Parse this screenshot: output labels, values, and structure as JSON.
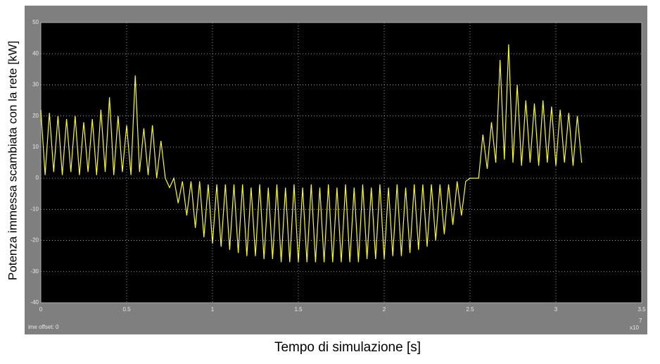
{
  "chart_data": {
    "type": "line",
    "y_label": "Potenza immessa scambiata con la rete  [kW]",
    "x_label": "Tempo di simulazione [s]",
    "offset_text": "ime offset:  0",
    "x_multiplier": {
      "base": "x10",
      "exponent": "7"
    },
    "color": "#ffff00",
    "grid": true,
    "xlim": [
      0,
      3.5
    ],
    "ylim": [
      -40,
      50
    ],
    "xticks": [
      0,
      0.5,
      1,
      1.5,
      2,
      2.5,
      3,
      3.5
    ],
    "yticks": [
      -40,
      -30,
      -20,
      -10,
      0,
      10,
      20,
      30,
      40,
      50
    ],
    "x": [
      0,
      0.025,
      0.05,
      0.075,
      0.1,
      0.125,
      0.15,
      0.175,
      0.2,
      0.225,
      0.25,
      0.275,
      0.3,
      0.325,
      0.35,
      0.375,
      0.4,
      0.425,
      0.45,
      0.475,
      0.5,
      0.525,
      0.55,
      0.575,
      0.6,
      0.625,
      0.65,
      0.675,
      0.7,
      0.725,
      0.75,
      0.775,
      0.8,
      0.825,
      0.85,
      0.875,
      0.9,
      0.925,
      0.95,
      0.975,
      1,
      1.025,
      1.05,
      1.075,
      1.1,
      1.125,
      1.15,
      1.175,
      1.2,
      1.225,
      1.25,
      1.275,
      1.3,
      1.325,
      1.35,
      1.375,
      1.4,
      1.425,
      1.45,
      1.475,
      1.5,
      1.525,
      1.55,
      1.575,
      1.6,
      1.625,
      1.65,
      1.675,
      1.7,
      1.725,
      1.75,
      1.775,
      1.8,
      1.825,
      1.85,
      1.875,
      1.9,
      1.925,
      1.95,
      1.975,
      2,
      2.025,
      2.05,
      2.075,
      2.1,
      2.125,
      2.15,
      2.175,
      2.2,
      2.225,
      2.25,
      2.275,
      2.3,
      2.325,
      2.35,
      2.375,
      2.4,
      2.425,
      2.45,
      2.475,
      2.5,
      2.525,
      2.55,
      2.575,
      2.6,
      2.625,
      2.65,
      2.675,
      2.7,
      2.725,
      2.75,
      2.775,
      2.8,
      2.825,
      2.85,
      2.875,
      2.9,
      2.925,
      2.95,
      2.975,
      3,
      3.025,
      3.05,
      3.075,
      3.1,
      3.125,
      3.15
    ],
    "values": [
      22,
      1,
      21,
      2,
      20,
      1,
      19,
      2,
      20,
      1,
      18,
      2,
      19,
      1,
      22,
      2,
      26,
      1,
      20,
      2,
      17,
      1,
      33,
      2,
      16,
      1,
      17,
      0,
      12,
      0,
      -3,
      0,
      -8,
      -1,
      -12,
      -1,
      -16,
      -1,
      -19,
      -2,
      -21,
      -2,
      -22,
      -2,
      -23,
      -2,
      -24,
      -2,
      -25,
      -3,
      -25,
      -2,
      -26,
      -3,
      -26,
      -2,
      -27,
      -3,
      -27,
      -2,
      -27,
      -3,
      -27,
      -2,
      -27,
      -3,
      -27,
      -2,
      -27,
      -3,
      -27,
      -2,
      -27,
      -3,
      -27,
      -2,
      -26,
      -3,
      -26,
      -2,
      -26,
      -3,
      -25,
      -2,
      -25,
      -3,
      -24,
      -2,
      -23,
      -2,
      -22,
      -2,
      -20,
      -2,
      -18,
      -2,
      -15,
      -1,
      -12,
      -1,
      0,
      0,
      0,
      14,
      3,
      18,
      5,
      38,
      6,
      43,
      5,
      30,
      4,
      25,
      5,
      24,
      4,
      25,
      5,
      23,
      4,
      22,
      5,
      21,
      4,
      20,
      5
    ]
  }
}
